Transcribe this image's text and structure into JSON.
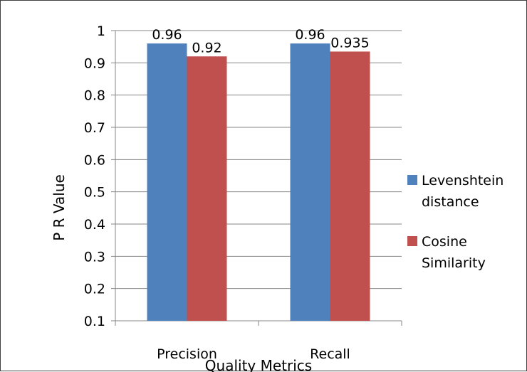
{
  "chart_data": {
    "type": "bar",
    "title": "",
    "xlabel": "Quality Metrics",
    "ylabel": "P R Value",
    "categories": [
      "Precision",
      "Recall"
    ],
    "series": [
      {
        "name": "Levenshtein distance",
        "values": [
          0.96,
          0.96
        ],
        "color": "#4F81BD",
        "labels": [
          "0.96",
          "0.96"
        ]
      },
      {
        "name": "Cosine Similarity",
        "values": [
          0.92,
          0.935
        ],
        "color": "#C0504D",
        "labels": [
          "0.92",
          "0.935"
        ]
      }
    ],
    "ylim": [
      0.1,
      1
    ],
    "yticks": [
      "0.1",
      "0.2",
      "0.3",
      "0.4",
      "0.5",
      "0.6",
      "0.7",
      "0.8",
      "0.9",
      "1"
    ],
    "grid": true,
    "legend_position": "right",
    "legend": [
      {
        "lines": [
          "Levenshtein",
          "distance"
        ],
        "color": "#4F81BD"
      },
      {
        "lines": [
          "Cosine",
          "Similarity"
        ],
        "color": "#C0504D"
      }
    ]
  }
}
